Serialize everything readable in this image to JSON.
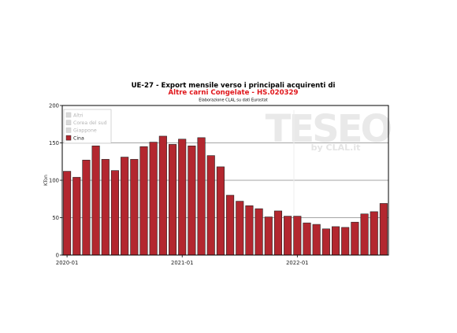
{
  "chart_data": {
    "type": "bar",
    "title": "UE-27 - Export mensile verso i principali acquirenti di",
    "subtitle": "Altre carni Congelate - HS.020329",
    "note": "Elaborazione CLAL su dati Eurostat",
    "ylabel": "KTon",
    "ylim": [
      0,
      200
    ],
    "yticks": [
      "0",
      "50",
      "100",
      "150",
      "200"
    ],
    "xtick_labels": [
      {
        "index": 0,
        "label": "2020-01"
      },
      {
        "index": 12,
        "label": "2021-01"
      },
      {
        "index": 24,
        "label": "2022-01"
      }
    ],
    "categories": [
      "2020-01",
      "2020-02",
      "2020-03",
      "2020-04",
      "2020-05",
      "2020-06",
      "2020-07",
      "2020-08",
      "2020-09",
      "2020-10",
      "2020-11",
      "2020-12",
      "2021-01",
      "2021-02",
      "2021-03",
      "2021-04",
      "2021-05",
      "2021-06",
      "2021-07",
      "2021-08",
      "2021-09",
      "2021-10",
      "2021-11",
      "2021-12",
      "2022-01",
      "2022-02",
      "2022-03",
      "2022-04",
      "2022-05",
      "2022-06",
      "2022-07",
      "2022-08",
      "2022-09",
      "2022-10"
    ],
    "series": [
      {
        "name": "Cina",
        "color": "#b3272f",
        "values": [
          112,
          104,
          127,
          146,
          128,
          113,
          131,
          128,
          145,
          151,
          159,
          148,
          155,
          146,
          157,
          133,
          118,
          80,
          72,
          66,
          62,
          51,
          59,
          52,
          52,
          43,
          41,
          35,
          38,
          37,
          44,
          55,
          58,
          69
        ]
      }
    ],
    "legend": {
      "placement": "top-left",
      "items": [
        {
          "label": "Altri",
          "color": "#d9d9d9",
          "muted": true
        },
        {
          "label": "Corea del sud",
          "color": "#d9d9d9",
          "muted": true
        },
        {
          "label": "Giappone",
          "color": "#d9d9d9",
          "muted": true
        },
        {
          "label": "Cina",
          "color": "#b3272f",
          "muted": false
        }
      ]
    },
    "grid": true,
    "watermark": {
      "main": "TESEO",
      "sub": "by CLAL.it"
    },
    "colors": {
      "title": "#000000",
      "subtitle": "#e0161b",
      "bar_edge": "#222222",
      "gridline": "#888888"
    }
  }
}
